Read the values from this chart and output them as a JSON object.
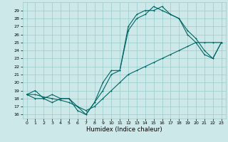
{
  "title": "",
  "xlabel": "Humidex (Indice chaleur)",
  "bg_color": "#cce8e8",
  "grid_color": "#99cccc",
  "line_color": "#006666",
  "xlim": [
    -0.5,
    23.5
  ],
  "ylim": [
    15.5,
    30.0
  ],
  "yticks": [
    16,
    17,
    18,
    19,
    20,
    21,
    22,
    23,
    24,
    25,
    26,
    27,
    28,
    29
  ],
  "xticks": [
    0,
    1,
    2,
    3,
    4,
    5,
    6,
    7,
    8,
    9,
    10,
    11,
    12,
    13,
    14,
    15,
    16,
    17,
    18,
    19,
    20,
    21,
    22,
    23
  ],
  "curve_lower_x": [
    0,
    1,
    2,
    3,
    4,
    5,
    6,
    7,
    8,
    9,
    10,
    11,
    12,
    13,
    14,
    15,
    16,
    17,
    18,
    19,
    20,
    21,
    22,
    23
  ],
  "curve_lower_y": [
    18.5,
    18.5,
    18.2,
    18.0,
    17.8,
    17.5,
    17.0,
    16.5,
    17.0,
    18.0,
    19.0,
    20.0,
    21.0,
    21.5,
    22.0,
    22.5,
    23.0,
    23.5,
    24.0,
    24.5,
    25.0,
    25.0,
    25.0,
    25.0
  ],
  "curve_mid_x": [
    0,
    1,
    2,
    3,
    4,
    5,
    6,
    7,
    8,
    9,
    10,
    11,
    12,
    13,
    14,
    15,
    16,
    17,
    18,
    19,
    20,
    21,
    22,
    23
  ],
  "curve_mid_y": [
    18.5,
    19.0,
    18.0,
    18.5,
    18.0,
    18.0,
    16.5,
    16.0,
    17.5,
    20.0,
    21.5,
    21.5,
    26.5,
    28.0,
    28.5,
    29.5,
    29.0,
    28.5,
    28.0,
    26.0,
    25.0,
    23.5,
    23.0,
    25.0
  ],
  "curve_top_x": [
    0,
    1,
    2,
    3,
    4,
    5,
    6,
    7,
    8,
    9,
    10,
    11,
    12,
    13,
    14,
    15,
    16,
    17,
    18,
    19,
    20,
    21,
    22,
    23
  ],
  "curve_top_y": [
    18.5,
    18.0,
    18.0,
    17.5,
    18.0,
    18.0,
    17.0,
    16.0,
    17.5,
    19.0,
    21.0,
    21.5,
    27.0,
    28.5,
    29.0,
    29.0,
    29.5,
    28.5,
    28.0,
    26.5,
    25.5,
    24.0,
    23.0,
    25.0
  ],
  "xlabel_fontsize": 6,
  "tick_fontsize": 4.5,
  "linewidth": 0.8,
  "marker_size": 2.0
}
